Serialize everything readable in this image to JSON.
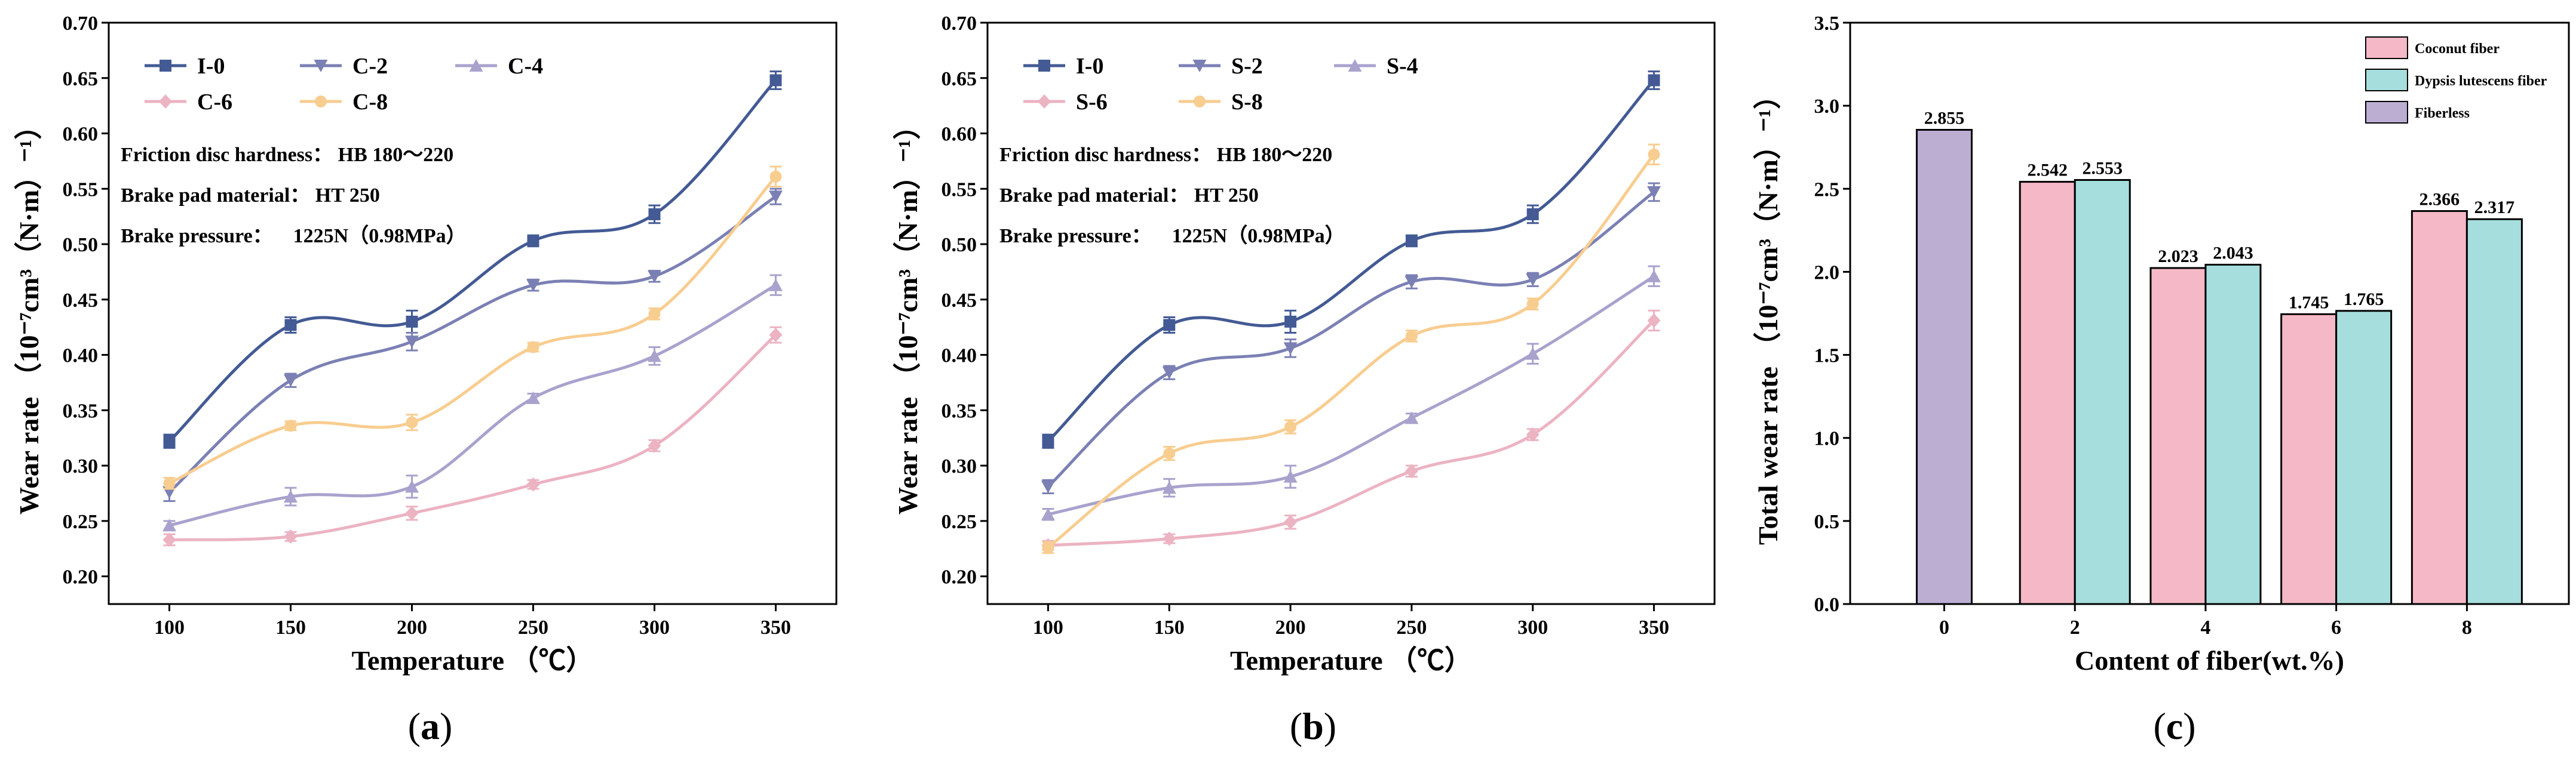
{
  "chart_data": [
    {
      "panel": "a",
      "type": "line",
      "xlabel": "Temperature （℃）",
      "ylabel": "Wear rate （10⁻⁷cm³（N·m）⁻¹）",
      "xlim": [
        75,
        375
      ],
      "ylim": [
        0.175,
        0.7
      ],
      "xticks": [
        100,
        150,
        200,
        250,
        300,
        350
      ],
      "yticks": [
        0.2,
        0.25,
        0.3,
        0.35,
        0.4,
        0.45,
        0.5,
        0.55,
        0.6,
        0.65,
        0.7
      ],
      "x": [
        100,
        150,
        200,
        250,
        300,
        350
      ],
      "notes": [
        "Friction disc hardness： HB 180～220",
        "Brake pad material： HT 250",
        "Brake pressure：    1225N（0.98MPa）"
      ],
      "series": [
        {
          "name": "I-0",
          "marker": "square",
          "color": "#435a94",
          "values": [
            0.322,
            0.427,
            0.43,
            0.503,
            0.527,
            0.648
          ],
          "errors": [
            0.006,
            0.007,
            0.01,
            0.005,
            0.008,
            0.008
          ]
        },
        {
          "name": "C-2",
          "marker": "triangle-down",
          "color": "#7b80b4",
          "values": [
            0.276,
            0.377,
            0.412,
            0.463,
            0.471,
            0.543
          ],
          "errors": [
            0.008,
            0.006,
            0.008,
            0.005,
            0.005,
            0.007
          ]
        },
        {
          "name": "C-4",
          "marker": "triangle-up",
          "color": "#a9a2cd",
          "values": [
            0.246,
            0.272,
            0.281,
            0.361,
            0.399,
            0.463
          ],
          "errors": [
            0.004,
            0.008,
            0.01,
            0.004,
            0.008,
            0.009
          ]
        },
        {
          "name": "C-6",
          "marker": "diamond",
          "color": "#ecb3c2",
          "values": [
            0.233,
            0.236,
            0.257,
            0.283,
            0.318,
            0.418
          ],
          "errors": [
            0.005,
            0.004,
            0.006,
            0.004,
            0.005,
            0.007
          ]
        },
        {
          "name": "C-8",
          "marker": "circle",
          "color": "#f8cd90",
          "values": [
            0.284,
            0.336,
            0.339,
            0.407,
            0.437,
            0.561
          ],
          "errors": [
            0.005,
            0.004,
            0.007,
            0.004,
            0.005,
            0.009
          ]
        }
      ]
    },
    {
      "panel": "b",
      "type": "line",
      "xlabel": "Temperature （℃）",
      "ylabel": "Wear rate （10⁻⁷cm³（N·m）⁻¹）",
      "xlim": [
        75,
        375
      ],
      "ylim": [
        0.175,
        0.7
      ],
      "xticks": [
        100,
        150,
        200,
        250,
        300,
        350
      ],
      "yticks": [
        0.2,
        0.25,
        0.3,
        0.35,
        0.4,
        0.45,
        0.5,
        0.55,
        0.6,
        0.65,
        0.7
      ],
      "x": [
        100,
        150,
        200,
        250,
        300,
        350
      ],
      "notes": [
        "Friction disc hardness： HB 180～220",
        "Brake pad material： HT 250",
        "Brake pressure：    1225N（0.98MPa）"
      ],
      "series": [
        {
          "name": "I-0",
          "marker": "square",
          "color": "#435a94",
          "values": [
            0.322,
            0.427,
            0.43,
            0.503,
            0.527,
            0.648
          ],
          "errors": [
            0.006,
            0.007,
            0.01,
            0.005,
            0.008,
            0.008
          ]
        },
        {
          "name": "S-2",
          "marker": "triangle-down",
          "color": "#7b80b4",
          "values": [
            0.281,
            0.384,
            0.406,
            0.466,
            0.468,
            0.547
          ],
          "errors": [
            0.006,
            0.006,
            0.008,
            0.006,
            0.006,
            0.008
          ]
        },
        {
          "name": "S-4",
          "marker": "triangle-up",
          "color": "#a9a2cd",
          "values": [
            0.256,
            0.28,
            0.29,
            0.343,
            0.401,
            0.471
          ],
          "errors": [
            0.005,
            0.008,
            0.01,
            0.004,
            0.009,
            0.009
          ]
        },
        {
          "name": "S-6",
          "marker": "diamond",
          "color": "#ecb3c2",
          "values": [
            0.228,
            0.234,
            0.249,
            0.295,
            0.328,
            0.431
          ],
          "errors": [
            0.004,
            0.004,
            0.006,
            0.005,
            0.005,
            0.009
          ]
        },
        {
          "name": "S-8",
          "marker": "circle",
          "color": "#f8cd90",
          "values": [
            0.226,
            0.311,
            0.335,
            0.417,
            0.446,
            0.581
          ],
          "errors": [
            0.005,
            0.006,
            0.006,
            0.005,
            0.005,
            0.009
          ]
        }
      ]
    },
    {
      "panel": "c",
      "type": "bar",
      "xlabel": "Content of fiber(wt.%)",
      "ylabel": "Total wear rate （10⁻⁷cm³（N·m）⁻¹）",
      "ylim": [
        0,
        3.5
      ],
      "yticks": [
        0.0,
        0.5,
        1.0,
        1.5,
        2.0,
        2.5,
        3.0,
        3.5
      ],
      "categories": [
        "0",
        "2",
        "4",
        "6",
        "8"
      ],
      "series": [
        {
          "name": "Coconut fiber",
          "color": "#f4b8c6",
          "values": [
            null,
            2.542,
            2.023,
            1.745,
            2.366
          ],
          "labels": [
            null,
            "2.542",
            "2.023",
            "1.745",
            "2.366"
          ]
        },
        {
          "name": "Dypsis lutescens fiber",
          "color": "#a6dedd",
          "values": [
            null,
            2.553,
            2.043,
            1.765,
            2.317
          ],
          "labels": [
            null,
            "2.553",
            "2.043",
            "1.765",
            "2.317"
          ]
        },
        {
          "name": "Fiberless",
          "color": "#bcaed3",
          "values": [
            2.855,
            null,
            null,
            null,
            null
          ],
          "labels": [
            "2.855",
            null,
            null,
            null,
            null
          ]
        }
      ]
    }
  ],
  "panel_labels": [
    "a",
    "b",
    "c"
  ]
}
